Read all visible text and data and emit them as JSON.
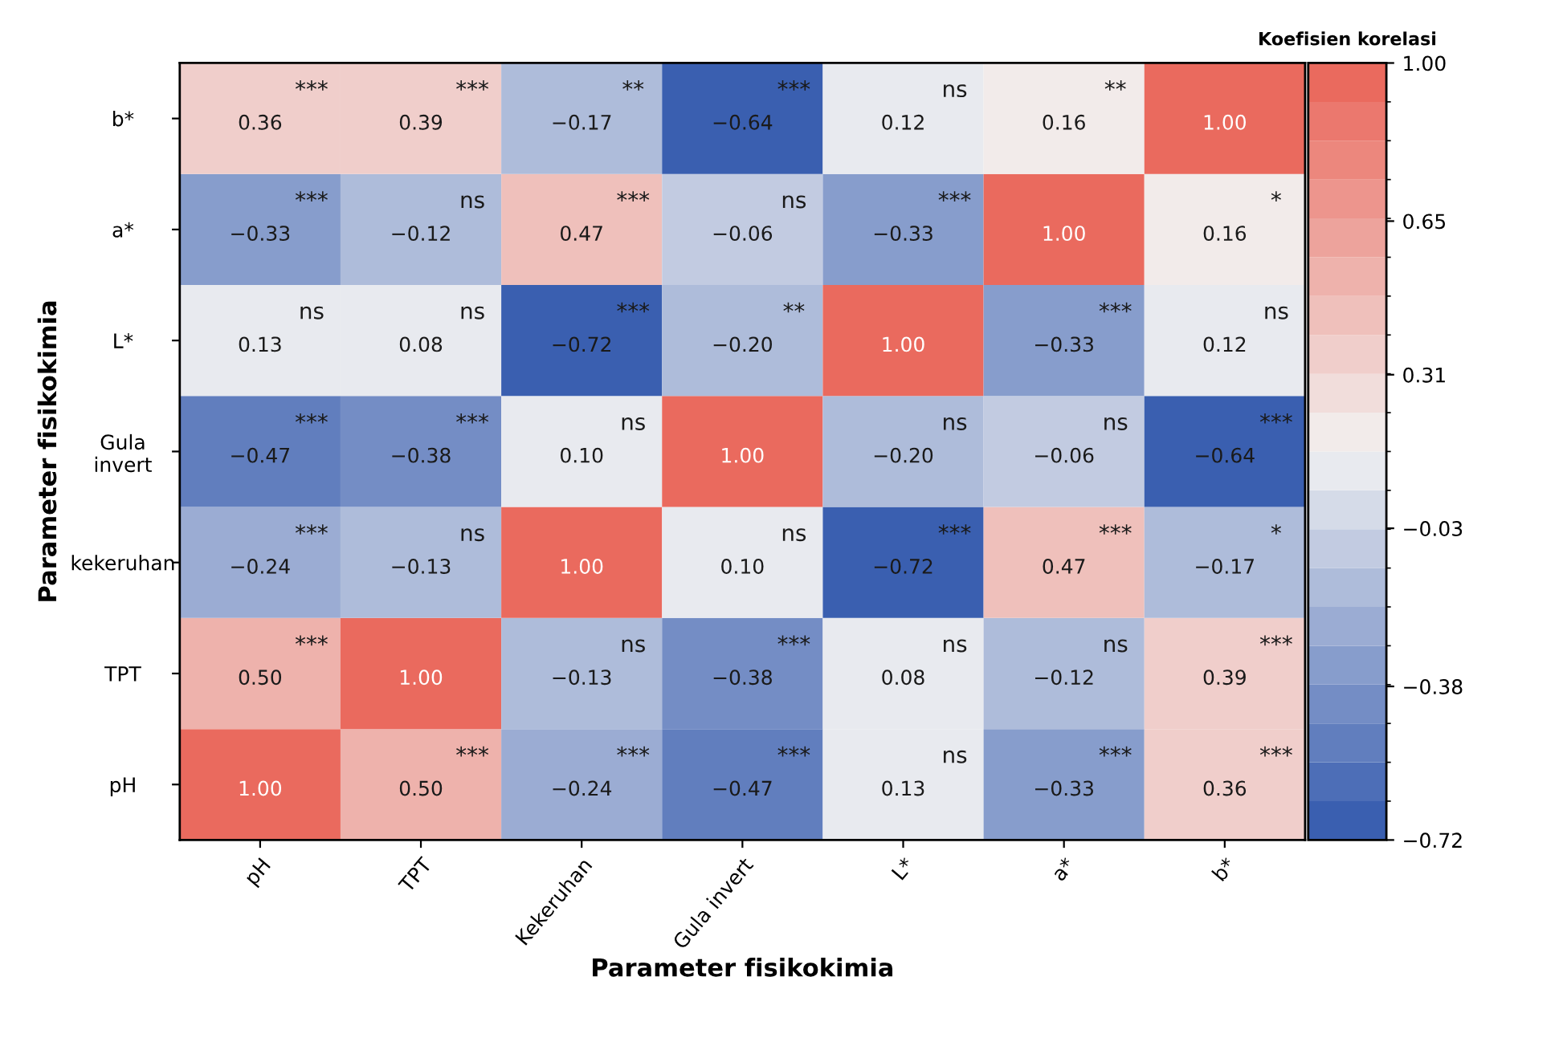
{
  "chart_data": {
    "type": "heatmap",
    "xlabel": "Parameter fisikokimia",
    "ylabel": "Parameter fisikokimia",
    "clabel": "Koefisien korelasi",
    "categories": [
      "pH",
      "TPT",
      "Kekeruhan",
      "Gula invert",
      "L*",
      "a*",
      "b*"
    ],
    "y_categories": [
      "b*",
      "a*",
      "L*",
      "Gula\ninvert",
      "kekeruhan",
      "TPT",
      "pH"
    ],
    "cells": [
      [
        0.36,
        0.39,
        -0.17,
        -0.64,
        0.12,
        0.16,
        1.0
      ],
      [
        -0.33,
        -0.12,
        0.47,
        -0.06,
        -0.33,
        1.0,
        0.16
      ],
      [
        0.13,
        0.08,
        -0.72,
        -0.2,
        1.0,
        -0.33,
        0.12
      ],
      [
        -0.47,
        -0.38,
        0.1,
        1.0,
        -0.2,
        -0.06,
        -0.64
      ],
      [
        -0.24,
        -0.13,
        1.0,
        0.1,
        -0.72,
        0.47,
        -0.17
      ],
      [
        0.5,
        1.0,
        -0.13,
        -0.38,
        0.08,
        -0.12,
        0.39
      ],
      [
        1.0,
        0.5,
        -0.24,
        -0.47,
        0.13,
        -0.33,
        0.36
      ]
    ],
    "cell_labels": [
      [
        "0.36 ***",
        "0.39 ***",
        "−0.17 **",
        "−0.64 ***",
        "0.12 ns",
        "0.16 **",
        "1.00"
      ],
      [
        "−0.33 ***",
        "−0.12 ns",
        "0.47 ***",
        "−0.06 ns",
        "−0.33 ***",
        "1.00",
        "0.16 *"
      ],
      [
        "0.13 ns",
        "0.08 ns",
        "−0.72 ***",
        "−0.20 **",
        "1.00",
        "−0.33 ***",
        "0.12 ns"
      ],
      [
        "−0.47 ***",
        "−0.38 ***",
        "0.10 ns",
        "1.00",
        "−0.20 ns",
        "−0.06 ns",
        "−0.64 ***"
      ],
      [
        "−0.24 ***",
        "−0.13 ns",
        "1.00",
        "0.10 ns",
        "−0.72 ***",
        "0.47 ***",
        "−0.17 *"
      ],
      [
        "0.50 ***",
        "1.00",
        "−0.13 ns",
        "−0.38 ***",
        "0.08 ns",
        "−0.12 ns",
        "0.39 ***"
      ],
      [
        "1.00",
        "0.50 ***",
        "−0.24 ***",
        "−0.47 ***",
        "0.13 ns",
        "−0.33 ***",
        "0.36 ***"
      ]
    ],
    "colors": [
      "#3a5fb0",
      "#f2f2f2",
      "#ea6a5e"
    ],
    "clim": [
      -0.72,
      1.0
    ],
    "cticks": [
      {
        "value": 1.0,
        "label": "1.00"
      },
      {
        "value": 0.65,
        "label": "0.65"
      },
      {
        "value": 0.31,
        "label": "0.31"
      },
      {
        "value": -0.03,
        "label": "−0.03"
      },
      {
        "value": -0.38,
        "label": "−0.38"
      },
      {
        "value": -0.72,
        "label": "−0.72"
      }
    ]
  }
}
